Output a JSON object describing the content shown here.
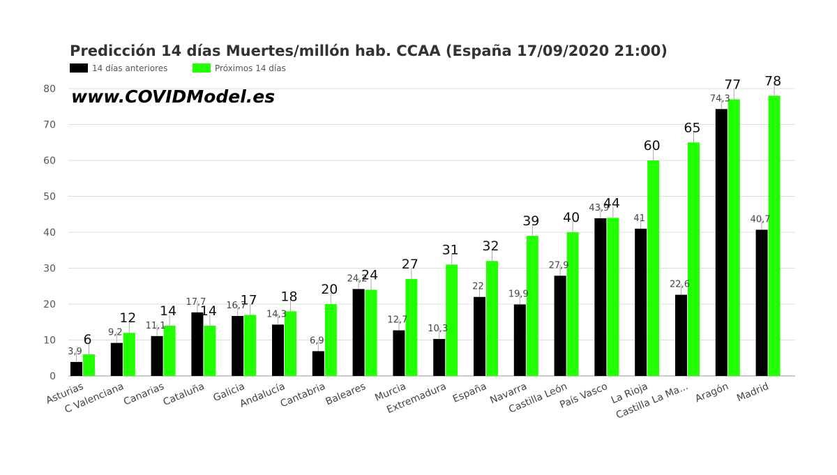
{
  "chart_data": {
    "type": "bar",
    "title": "Predicción 14 días Muertes/millón hab. CCAA (España 17/09/2020 21:00)",
    "watermark": "www.COVIDModel.es",
    "legend_position": "top-left",
    "grid": true,
    "ylim": [
      0,
      80
    ],
    "yticks": [
      0,
      10,
      20,
      30,
      40,
      50,
      60,
      70,
      80
    ],
    "colors": {
      "prev": "#000000",
      "next": "#22ff00"
    },
    "categories": [
      "Asturias",
      "C Valenciana",
      "Canarias",
      "Cataluña",
      "Galicia",
      "Andalucía",
      "Cantabria",
      "Baleares",
      "Murcia",
      "Extremadura",
      "España",
      "Navarra",
      "Castilla León",
      "País Vasco",
      "La Rioja",
      "Castilla La Ma...",
      "Aragón",
      "Madrid"
    ],
    "series": [
      {
        "name": "14 días anteriores",
        "values": [
          3.9,
          9.2,
          11.1,
          17.7,
          16.7,
          14.3,
          6.9,
          24.2,
          12.7,
          10.3,
          22,
          19.9,
          27.9,
          43.9,
          41,
          22.6,
          74.3,
          40.7
        ],
        "labels": [
          "3,9",
          "9,2",
          "11,1",
          "17,7",
          "16,7",
          "14,3",
          "6,9",
          "24,2",
          "12,7",
          "10,3",
          "22",
          "19,9",
          "27,9",
          "43,9",
          "41",
          "22,6",
          "74,3",
          "40,7"
        ]
      },
      {
        "name": "Próximos 14 días",
        "values": [
          6,
          12,
          14,
          14,
          17,
          18,
          20,
          24,
          27,
          31,
          32,
          39,
          40,
          44,
          60,
          65,
          77,
          78
        ],
        "labels": [
          "6",
          "12",
          "14",
          "14",
          "17",
          "18",
          "20",
          "24",
          "27",
          "31",
          "32",
          "39",
          "40",
          "44",
          "60",
          "65",
          "77",
          "78"
        ]
      }
    ]
  }
}
